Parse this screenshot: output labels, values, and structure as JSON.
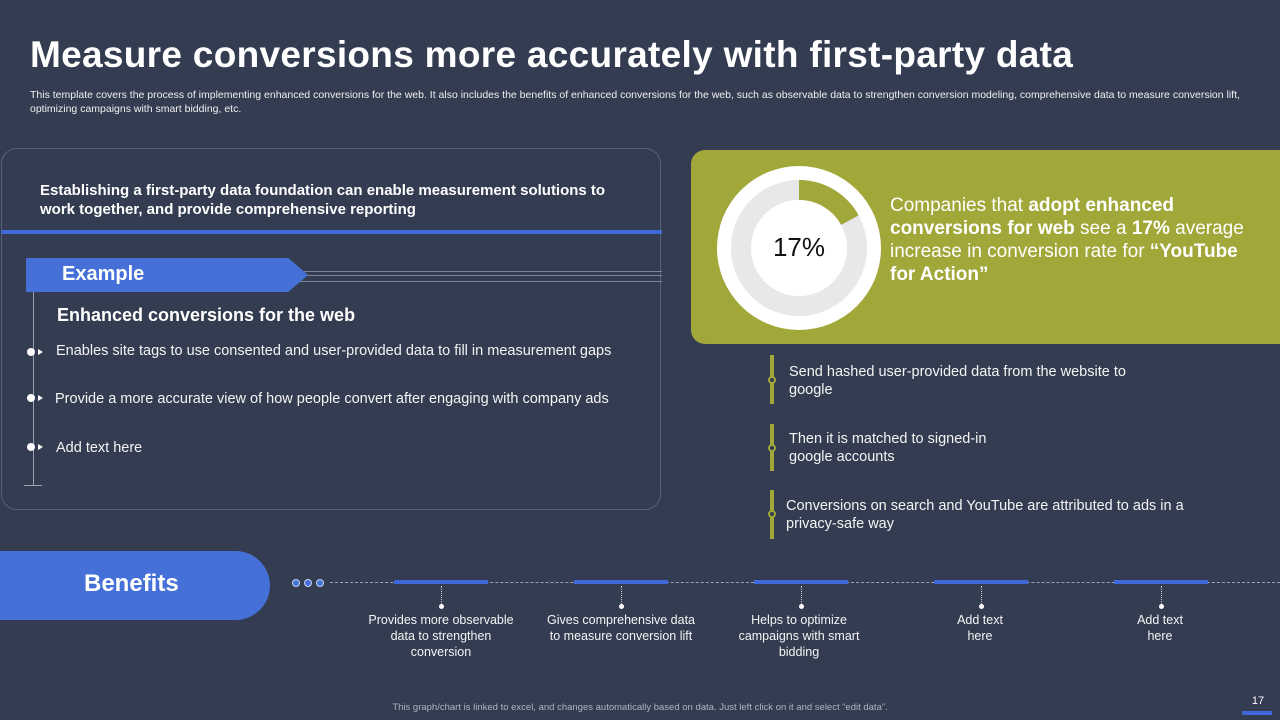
{
  "header": {
    "title": "Measure conversions more accurately with first-party data",
    "subtitle": "This template covers the process of implementing enhanced conversions for the web. It also includes the benefits of enhanced conversions for the web, such as observable data to strengthen conversion modeling, comprehensive data to measure conversion lift, optimizing campaigns with smart bidding, etc."
  },
  "left_panel": {
    "foundation_text": "Establishing a first-party  data foundation can enable measurement solutions to work together,  and provide comprehensive reporting",
    "example_label": "Example",
    "heading": "Enhanced conversions for the web",
    "bullets": [
      "Enables site tags to use consented and user-provided data to fill in measurement gaps",
      "Provide a more accurate view of how people convert after engaging with company ads",
      "Add text here"
    ]
  },
  "stat": {
    "percent_label": "17%",
    "percent_value": 17,
    "text_pre": "Companies that ",
    "text_bold": "adopt enhanced conversions for web",
    "text_mid": " see a ",
    "text_bold2": "17%",
    "text_post": " average increase in conversion rate for ",
    "text_bold3": "“YouTube for Action”",
    "colors": {
      "accent": "#a1a739",
      "track": "#e8e8e8"
    }
  },
  "steps": [
    "Send hashed user-provided data from the website to google",
    "Then it is matched to signed-in google accounts",
    "Conversions on search and YouTube are attributed to ads in a privacy-safe way"
  ],
  "benefits": {
    "label": "Benefits",
    "items": [
      "Provides more observable data to strengthen conversion",
      "Gives comprehensive data to measure conversion lift",
      "Helps to optimize campaigns with smart bidding",
      "Add text here",
      "Add text here"
    ]
  },
  "footer": {
    "note": "This graph/chart is linked to excel, and changes automatically based on data. Just left click on it and select “edit data”.",
    "page_number": "17"
  },
  "colors": {
    "background": "#333c50",
    "blue": "#4570d8",
    "olive": "#a1a739"
  }
}
